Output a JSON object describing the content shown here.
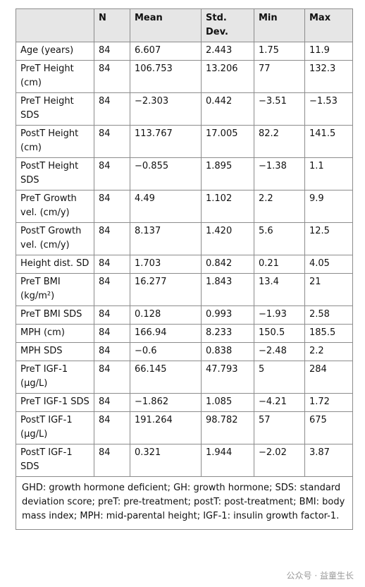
{
  "table": {
    "header": [
      "",
      "N",
      "Mean",
      "Std. Dev.",
      "Min",
      "Max"
    ],
    "rows": [
      [
        "Age (years)",
        "84",
        "6.607",
        "2.443",
        "1.75",
        "11.9"
      ],
      [
        "PreT Height (cm)",
        "84",
        "106.753",
        "13.206",
        "77",
        "132.3"
      ],
      [
        "PreT Height SDS",
        "84",
        "−2.303",
        "0.442",
        "−3.51",
        "−1.53"
      ],
      [
        "PostT Height (cm)",
        "84",
        "113.767",
        "17.005",
        "82.2",
        "141.5"
      ],
      [
        "PostT Height SDS",
        "84",
        "−0.855",
        "1.895",
        "−1.38",
        "1.1"
      ],
      [
        "PreT Growth vel. (cm/y)",
        "84",
        "4.49",
        "1.102",
        "2.2",
        "9.9"
      ],
      [
        "PostT Growth vel. (cm/y)",
        "84",
        "8.137",
        "1.420",
        "5.6",
        "12.5"
      ],
      [
        "Height dist. SD",
        "84",
        "1.703",
        "0.842",
        "0.21",
        "4.05"
      ],
      [
        "PreT BMI (kg/m²)",
        "84",
        "16.277",
        "1.843",
        "13.4",
        "21"
      ],
      [
        "PreT BMI SDS",
        "84",
        "0.128",
        "0.993",
        "−1.93",
        "2.58"
      ],
      [
        "MPH (cm)",
        "84",
        "166.94",
        "8.233",
        "150.5",
        "185.5"
      ],
      [
        "MPH SDS",
        "84",
        "−0.6",
        "0.838",
        "−2.48",
        "2.2"
      ],
      [
        "PreT IGF-1 (µg/L)",
        "84",
        "66.145",
        "47.793",
        "5",
        "284"
      ],
      [
        "PreT IGF-1 SDS",
        "84",
        "−1.862",
        "1.085",
        "−4.21",
        "1.72"
      ],
      [
        "PostT IGF-1 (µg/L)",
        "84",
        "191.264",
        "98.782",
        "57",
        "675"
      ],
      [
        "PostT IGF-1 SDS",
        "84",
        "0.321",
        "1.944",
        "−2.02",
        "3.87"
      ]
    ],
    "note": "GHD: growth hormone deficient; GH: growth hormone; SDS: standard deviation score; preT: pre-treatment; postT: post-treatment; BMI: body mass index; MPH: mid-parental height; IGF-1: insulin growth factor-1."
  },
  "watermark": "公众号 · 益童生长"
}
